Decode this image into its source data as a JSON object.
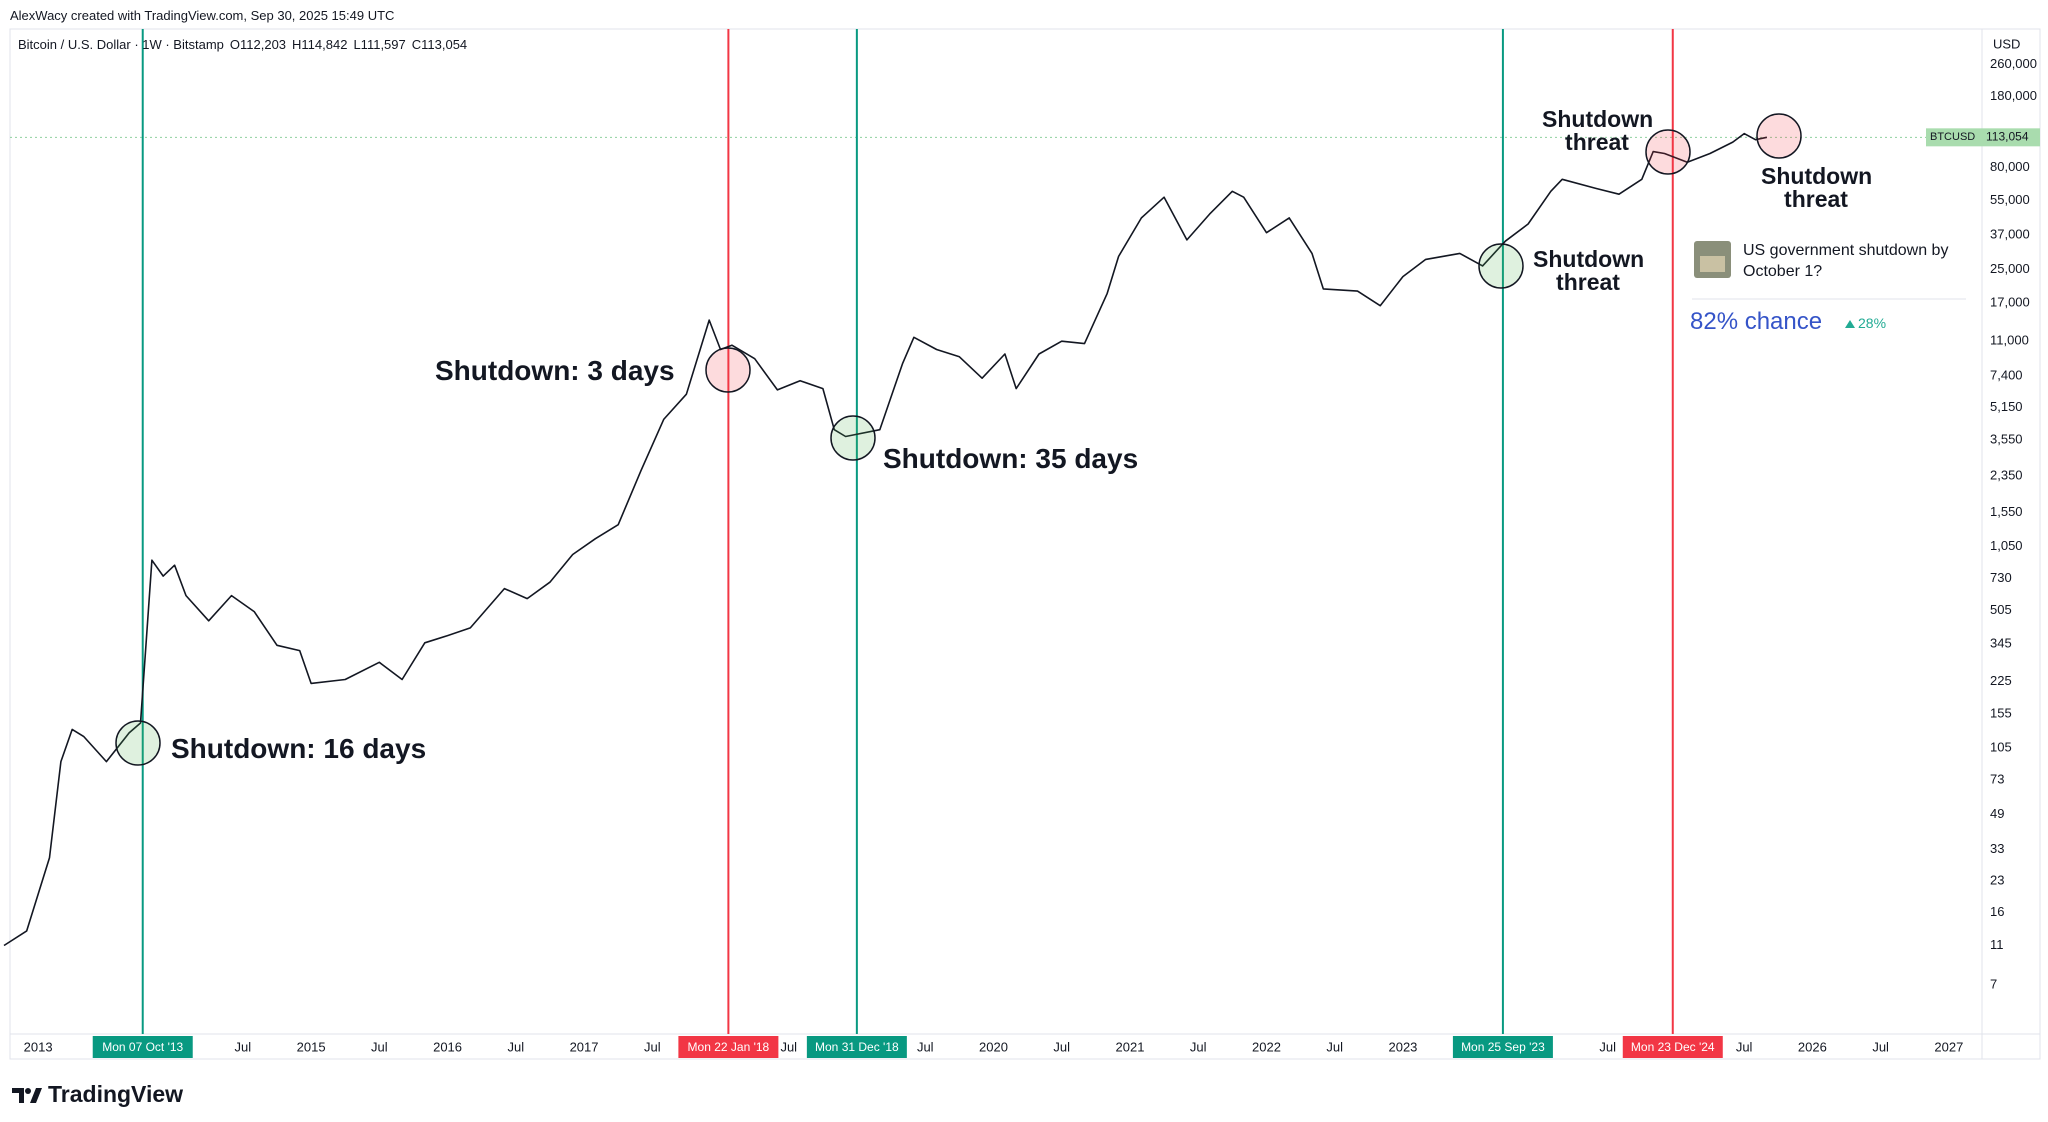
{
  "header": {
    "credit": "AlexWacy created with TradingView.com, Sep 30, 2025 15:49 UTC",
    "symbol": "Bitcoin / U.S. Dollar · 1W · Bitstamp",
    "ohlc": [
      "O112,203",
      "H114,842",
      "L111,597",
      "C113,054"
    ]
  },
  "chart_data": {
    "type": "line",
    "log_scale": true,
    "color": "#131722",
    "currency": "USD",
    "x": [
      "2012-10",
      "2012-12",
      "2013-02",
      "2013-03",
      "2013-04",
      "2013-05",
      "2013-07",
      "2013-09",
      "2013-10",
      "2013-11",
      "2013-12",
      "2014-01",
      "2014-02",
      "2014-04",
      "2014-06",
      "2014-08",
      "2014-10",
      "2014-12",
      "2015-01",
      "2015-04",
      "2015-07",
      "2015-09",
      "2015-11",
      "2016-01",
      "2016-03",
      "2016-06",
      "2016-08",
      "2016-10",
      "2016-12",
      "2017-02",
      "2017-04",
      "2017-06",
      "2017-08",
      "2017-10",
      "2017-12",
      "2018-01",
      "2018-02",
      "2018-04",
      "2018-06",
      "2018-08",
      "2018-10",
      "2018-11",
      "2018-12",
      "2019-03",
      "2019-05",
      "2019-06",
      "2019-08",
      "2019-10",
      "2019-12",
      "2020-02",
      "2020-03",
      "2020-05",
      "2020-07",
      "2020-09",
      "2020-11",
      "2020-12",
      "2021-02",
      "2021-04",
      "2021-06",
      "2021-08",
      "2021-10",
      "2021-11",
      "2022-01",
      "2022-03",
      "2022-05",
      "2022-06",
      "2022-09",
      "2022-11",
      "2023-01",
      "2023-03",
      "2023-06",
      "2023-08",
      "2023-10",
      "2023-12",
      "2024-02",
      "2024-03",
      "2024-06",
      "2024-08",
      "2024-10",
      "2024-11",
      "2024-12",
      "2025-02",
      "2025-04",
      "2025-06",
      "2025-07",
      "2025-08",
      "2025-09"
    ],
    "values": [
      11,
      13,
      30,
      90,
      130,
      120,
      90,
      125,
      140,
      900,
      750,
      850,
      600,
      450,
      600,
      500,
      340,
      320,
      220,
      230,
      280,
      230,
      350,
      380,
      415,
      650,
      580,
      700,
      960,
      1150,
      1350,
      2500,
      4500,
      6000,
      14000,
      10000,
      10500,
      9000,
      6300,
      7000,
      6400,
      4000,
      3700,
      4000,
      8500,
      11500,
      10000,
      9200,
      7200,
      9500,
      6400,
      9500,
      11000,
      10700,
      19000,
      29000,
      45000,
      57000,
      35000,
      47000,
      61000,
      57000,
      38000,
      45000,
      30000,
      20000,
      19500,
      16500,
      23000,
      28000,
      30000,
      26000,
      34500,
      42000,
      61000,
      70000,
      63000,
      59000,
      70000,
      96000,
      94000,
      85000,
      94000,
      107000,
      118000,
      110000,
      113054
    ],
    "xlim": [
      "2012-10",
      "2027-04"
    ],
    "ylim": [
      4,
      390000
    ],
    "yticks": [
      7,
      11,
      16,
      23,
      33,
      49,
      73,
      105,
      155,
      225,
      345,
      505,
      730,
      {
        "value": 1050,
        "label": "1,050"
      },
      {
        "value": 1550,
        "label": "1,550"
      },
      {
        "value": 2350,
        "label": "2,350"
      },
      {
        "value": 3550,
        "label": "3,550"
      },
      {
        "value": 5150,
        "label": "5,150"
      },
      {
        "value": 7400,
        "label": "7,400"
      },
      {
        "value": 11000,
        "label": "11,000"
      },
      {
        "value": 17000,
        "label": "17,000"
      },
      {
        "value": 25000,
        "label": "25,000"
      },
      {
        "value": 37000,
        "label": "37,000"
      },
      {
        "value": 55000,
        "label": "55,000"
      },
      {
        "value": 80000,
        "label": "80,000"
      },
      {
        "value": 180000,
        "label": "180,000"
      },
      {
        "value": 260000,
        "label": "260,000"
      }
    ],
    "xticks": [
      {
        "value": "2013-01",
        "label": "2013"
      },
      {
        "value": "2014-07",
        "label": "Jul"
      },
      {
        "value": "2015-01",
        "label": "2015"
      },
      {
        "value": "2015-07",
        "label": "Jul"
      },
      {
        "value": "2016-01",
        "label": "2016"
      },
      {
        "value": "2016-07",
        "label": "Jul"
      },
      {
        "value": "2017-01",
        "label": "2017"
      },
      {
        "value": "2017-07",
        "label": "Jul"
      },
      {
        "value": "2018-07",
        "label": "Jul"
      },
      {
        "value": "2019-07",
        "label": "Jul"
      },
      {
        "value": "2020-01",
        "label": "2020"
      },
      {
        "value": "2020-07",
        "label": "Jul"
      },
      {
        "value": "2021-01",
        "label": "2021"
      },
      {
        "value": "2021-07",
        "label": "Jul"
      },
      {
        "value": "2022-01",
        "label": "2022"
      },
      {
        "value": "2022-07",
        "label": "Jul"
      },
      {
        "value": "2023-01",
        "label": "2023"
      },
      {
        "value": "2024-07",
        "label": "Jul"
      },
      {
        "value": "2025-07",
        "label": "Jul"
      },
      {
        "value": "2026-01",
        "label": "2026"
      },
      {
        "value": "2026-07",
        "label": "Jul"
      },
      {
        "value": "2027-01",
        "label": "2027"
      }
    ],
    "last_price": {
      "symbol": "BTCUSD",
      "value": 113054,
      "label": "113,054"
    },
    "events": [
      {
        "date": "2013-10-07",
        "label": "Mon 07 Oct '13",
        "color": "#089981"
      },
      {
        "date": "2018-01-22",
        "label": "Mon 22 Jan '18",
        "color": "#f23645"
      },
      {
        "date": "2018-12-31",
        "label": "Mon 31 Dec '18",
        "color": "#089981"
      },
      {
        "date": "2023-09-25",
        "label": "Mon 25 Sep '23",
        "color": "#089981"
      },
      {
        "date": "2024-12-23",
        "label": "Mon 23 Dec '24",
        "color": "#f23645"
      }
    ],
    "annotations": [
      "Shutdown: 16 days",
      "Shutdown: 3 days",
      "Shutdown: 35 days",
      "Shutdown threat",
      "Shutdown threat",
      "Shutdown threat"
    ]
  },
  "widget": {
    "question": "US government shutdown by October 1?",
    "chance": "82% chance",
    "change": "28%"
  },
  "footer": {
    "logo": "TradingView"
  }
}
